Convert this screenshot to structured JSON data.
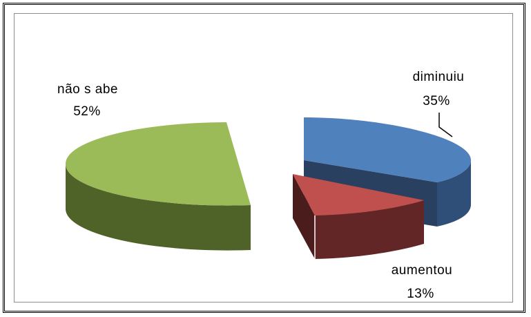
{
  "chart_data": {
    "type": "pie",
    "style": "3d-exploded",
    "title": "",
    "legend": "none",
    "slices": [
      {
        "label": "diminuiu",
        "percent_label": "35%",
        "value": 35,
        "color_top": "#4f81bd",
        "color_side": "#2a4060"
      },
      {
        "label": "aumentou",
        "percent_label": "13%",
        "value": 13,
        "color_top": "#c0504d",
        "color_side": "#632626"
      },
      {
        "label": "não s abe",
        "percent_label": "52%",
        "value": 52,
        "color_top": "#9bbb59",
        "color_side": "#4f6228"
      }
    ]
  }
}
